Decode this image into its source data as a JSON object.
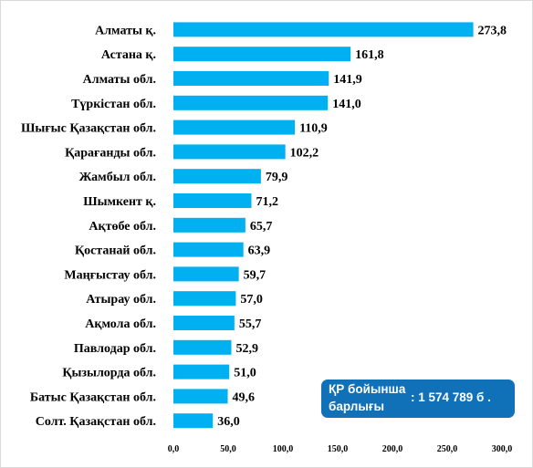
{
  "chart_data": {
    "type": "bar",
    "orientation": "horizontal",
    "categories": [
      "Алматы қ.",
      "Астана қ.",
      "Алматы обл.",
      "Түркістан обл.",
      "Шығыс Қазақстан обл.",
      "Қарағанды обл.",
      "Жамбыл обл.",
      "Шымкент қ.",
      "Ақтөбе обл.",
      "Қостанай обл.",
      "Маңғыстау обл.",
      "Атырау обл.",
      "Ақмола обл.",
      "Павлодар обл.",
      "Қызылорда обл.",
      "Батыс Қазақстан обл.",
      "Солт. Қазақстан обл."
    ],
    "values": [
      273.8,
      161.8,
      141.9,
      141.0,
      110.9,
      102.2,
      79.9,
      71.2,
      65.7,
      63.9,
      59.7,
      57.0,
      55.7,
      52.9,
      51.0,
      49.6,
      36.0
    ],
    "value_labels": [
      "273,8",
      "161,8",
      "141,9",
      "141,0",
      "110,9",
      "102,2",
      "79,9",
      "71,2",
      "65,7",
      "63,9",
      "59,7",
      "57,0",
      "55,7",
      "52,9",
      "51,0",
      "49,6",
      "36,0"
    ],
    "xlim": [
      0,
      300
    ],
    "xticks": [
      0,
      50,
      100,
      150,
      200,
      250,
      300
    ],
    "xtick_labels": [
      "0,0",
      "50,0",
      "100,0",
      "150,0",
      "200,0",
      "250,0",
      "300,0"
    ],
    "grid": false,
    "bar_color": "#00b0f0",
    "title": "",
    "xlabel": "",
    "ylabel": ""
  },
  "callout": {
    "line1": "ҚР бойынша",
    "line2": "барлығы",
    "value": ": 1 574 789  б .",
    "color": "#1070b8"
  }
}
